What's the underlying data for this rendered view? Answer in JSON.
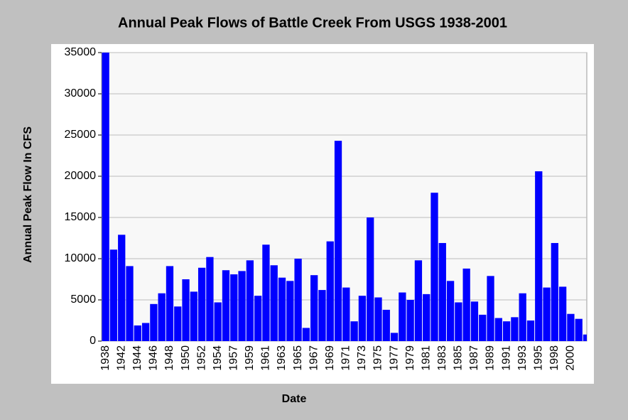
{
  "chart_data": {
    "type": "bar",
    "title": "Annual Peak Flows of Battle Creek From USGS 1938-2001",
    "x_label": "Date",
    "y_label": "Annual Peak Flow In CFS",
    "categories": [
      "1938",
      null,
      "1942",
      null,
      "1944",
      null,
      "1946",
      null,
      "1948",
      null,
      "1950",
      null,
      "1952",
      null,
      "1954",
      null,
      "1957",
      null,
      "1959",
      null,
      "1961",
      null,
      "1963",
      null,
      "1965",
      null,
      "1967",
      null,
      "1969",
      null,
      "1971",
      null,
      "1973",
      null,
      "1975",
      null,
      "1977",
      null,
      "1979",
      null,
      "1981",
      null,
      "1983",
      null,
      "1985",
      null,
      "1987",
      null,
      "1989",
      null,
      "1991",
      null,
      "1993",
      null,
      "1995",
      null,
      "1998",
      null,
      "2000",
      null,
      null
    ],
    "values": [
      35000,
      11100,
      12900,
      9100,
      1900,
      2200,
      4500,
      5800,
      9100,
      4200,
      7500,
      6000,
      8900,
      10200,
      4700,
      8600,
      8100,
      8500,
      9800,
      5500,
      11700,
      9200,
      7700,
      7300,
      10000,
      1600,
      8000,
      6200,
      12100,
      24300,
      6500,
      2400,
      5500,
      15000,
      5300,
      3800,
      1000,
      5900,
      5000,
      9800,
      5700,
      18000,
      11900,
      7300,
      4700,
      8800,
      4800,
      3200,
      7900,
      2800,
      2400,
      2900,
      5800,
      2500,
      20600,
      6500,
      11900,
      6600,
      3300,
      2700,
      800
    ],
    "color": "#0000ff",
    "ylim": [
      0,
      35000
    ],
    "yticks": [
      0,
      5000,
      10000,
      15000,
      20000,
      25000,
      30000,
      35000
    ],
    "grid": true
  }
}
